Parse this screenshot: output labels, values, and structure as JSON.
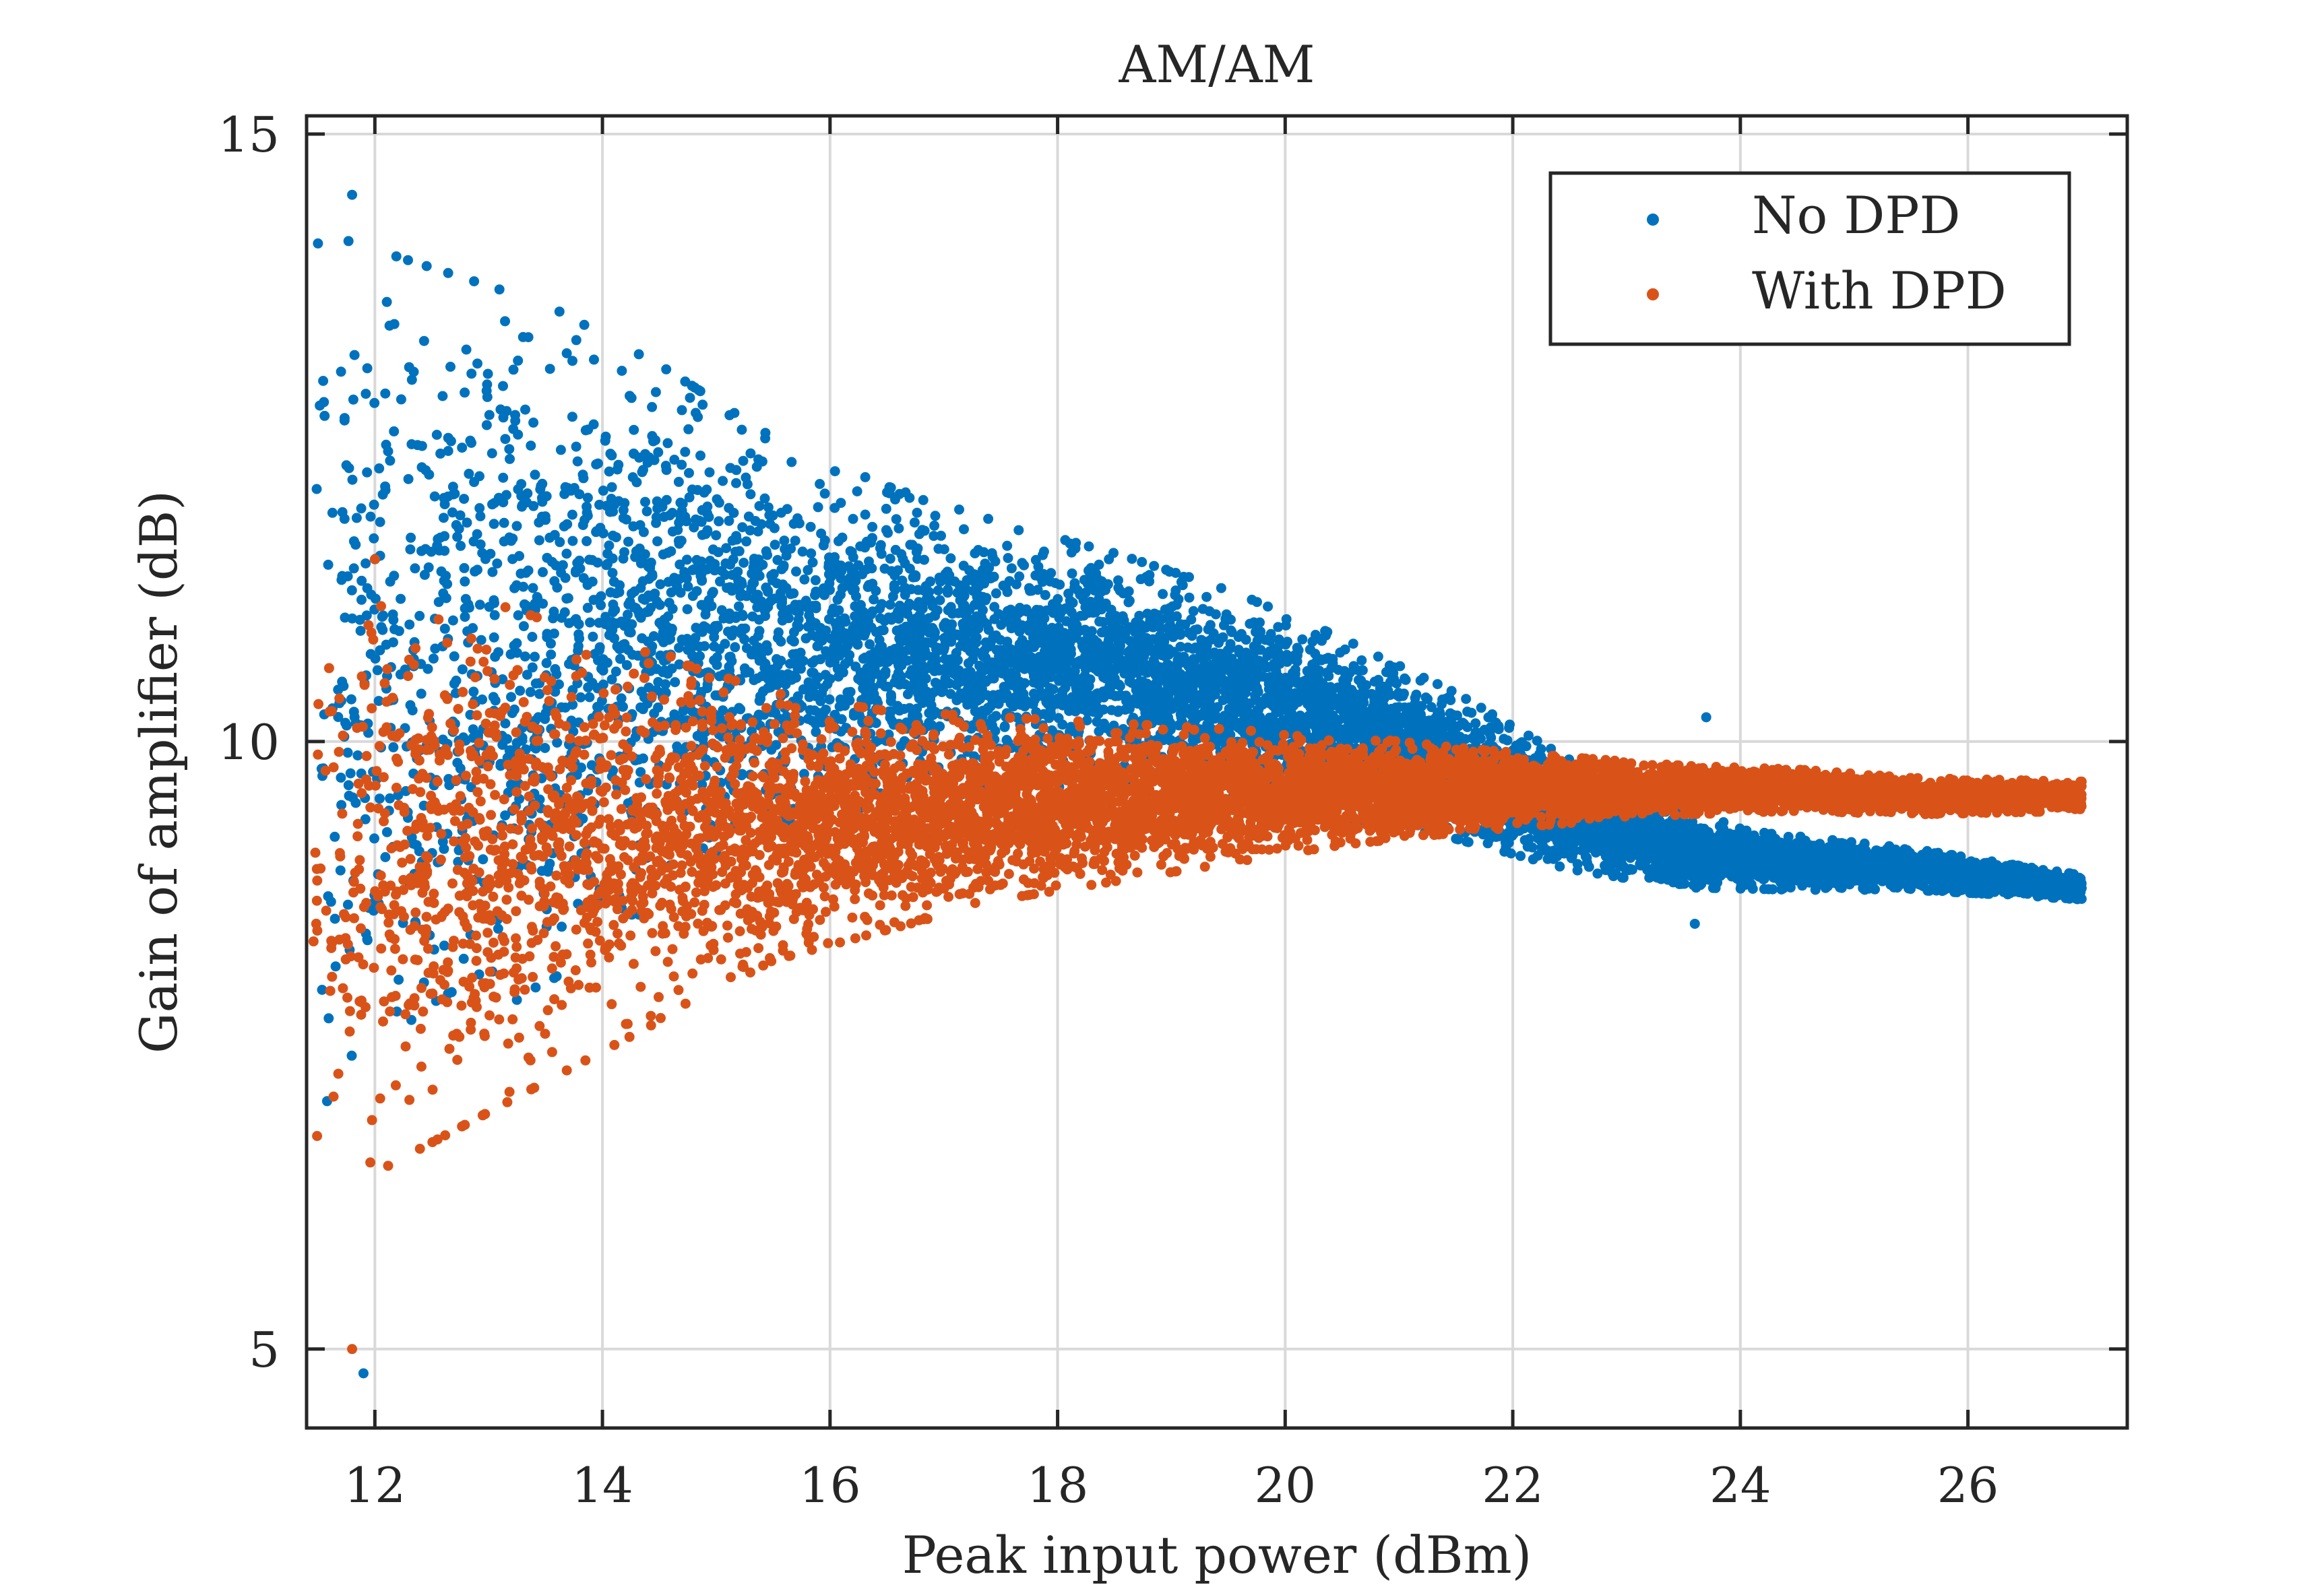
{
  "chart_data": {
    "type": "scatter",
    "title": "AM/AM",
    "xlabel": "Peak input power (dBm)",
    "ylabel": "Gain of amplifier (dB)",
    "xlim": [
      11.4,
      27.4
    ],
    "ylim": [
      4.35,
      15.15
    ],
    "xticks": [
      12,
      14,
      16,
      18,
      20,
      22,
      24,
      26
    ],
    "yticks": [
      5,
      10,
      15
    ],
    "grid": true,
    "legend_position": "top-right",
    "series": [
      {
        "name": "No DPD",
        "color": "#0072BD",
        "envelope": {
          "x": [
            11.5,
            12.5,
            13.5,
            14.5,
            15.5,
            16.5,
            17.5,
            18.5,
            19.5,
            20.5,
            21.5,
            22.5,
            23.5,
            24.5,
            25.5,
            26.5,
            27.0
          ],
          "y_center": [
            10.6,
            10.7,
            10.8,
            10.9,
            10.9,
            10.8,
            10.7,
            10.6,
            10.4,
            10.1,
            9.8,
            9.4,
            9.1,
            9.0,
            8.95,
            8.85,
            8.8
          ],
          "y_spread": [
            3.6,
            3.2,
            2.8,
            2.2,
            1.6,
            1.3,
            1.1,
            0.95,
            0.85,
            0.75,
            0.6,
            0.45,
            0.3,
            0.22,
            0.17,
            0.12,
            0.1
          ]
        },
        "extreme_points": [
          [
            11.8,
            14.5
          ],
          [
            11.9,
            4.8
          ],
          [
            11.5,
            14.1
          ],
          [
            23.7,
            10.2
          ],
          [
            23.6,
            8.5
          ]
        ]
      },
      {
        "name": "With DPD",
        "color": "#D95319",
        "envelope": {
          "x": [
            11.5,
            12.5,
            13.5,
            14.5,
            15.5,
            16.5,
            17.5,
            18.5,
            19.5,
            20.5,
            21.5,
            22.5,
            23.5,
            24.5,
            25.5,
            26.5,
            27.0
          ],
          "y_center": [
            8.9,
            9.0,
            9.1,
            9.2,
            9.3,
            9.35,
            9.45,
            9.5,
            9.55,
            9.6,
            9.6,
            9.6,
            9.6,
            9.6,
            9.55,
            9.55,
            9.55
          ],
          "y_spread": [
            2.7,
            2.3,
            1.9,
            1.5,
            1.1,
            0.9,
            0.75,
            0.65,
            0.55,
            0.45,
            0.35,
            0.27,
            0.2,
            0.17,
            0.15,
            0.13,
            0.12
          ]
        },
        "extreme_points": [
          [
            11.8,
            5.0
          ],
          [
            12.0,
            11.5
          ],
          [
            14.6,
            10.7
          ]
        ]
      }
    ]
  }
}
